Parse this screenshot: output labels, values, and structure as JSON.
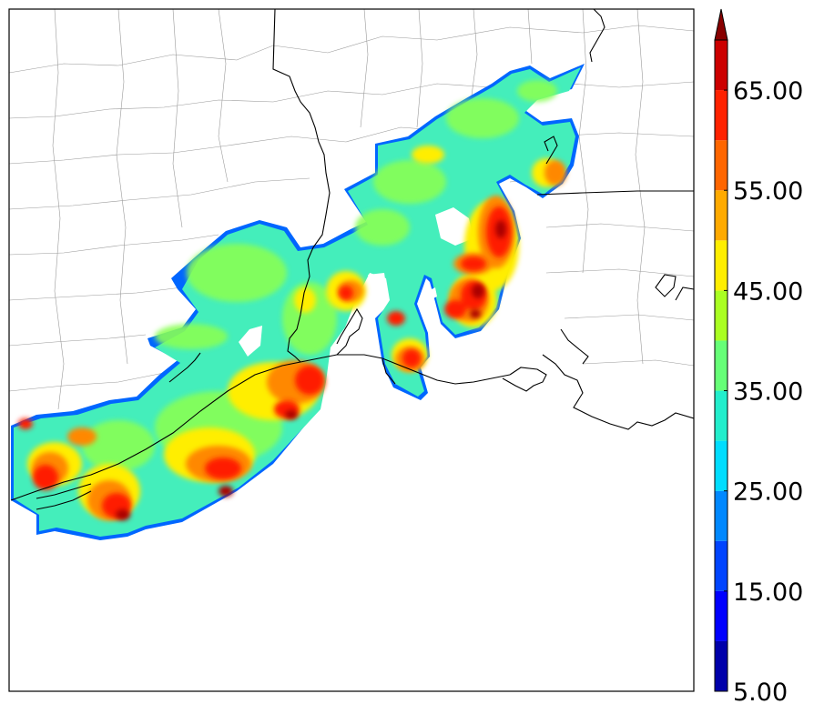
{
  "colorbar": {
    "ticks": [
      "5.00",
      "15.00",
      "25.00",
      "35.00",
      "45.00",
      "55.00",
      "65.00"
    ],
    "tick_values": [
      5,
      15,
      25,
      35,
      45,
      55,
      65
    ],
    "min": 5,
    "max": 70,
    "step": 5,
    "extend": "max",
    "colors": [
      "#0000aa",
      "#0000ff",
      "#0044ff",
      "#0088ff",
      "#00ddff",
      "#22eecc",
      "#66ff77",
      "#aaff22",
      "#ffee00",
      "#ffaa00",
      "#ff6600",
      "#ff2200",
      "#cc0000"
    ],
    "extend_color": "#880000"
  },
  "map": {
    "lines_color": "#000000",
    "county_color": "#999999"
  }
}
